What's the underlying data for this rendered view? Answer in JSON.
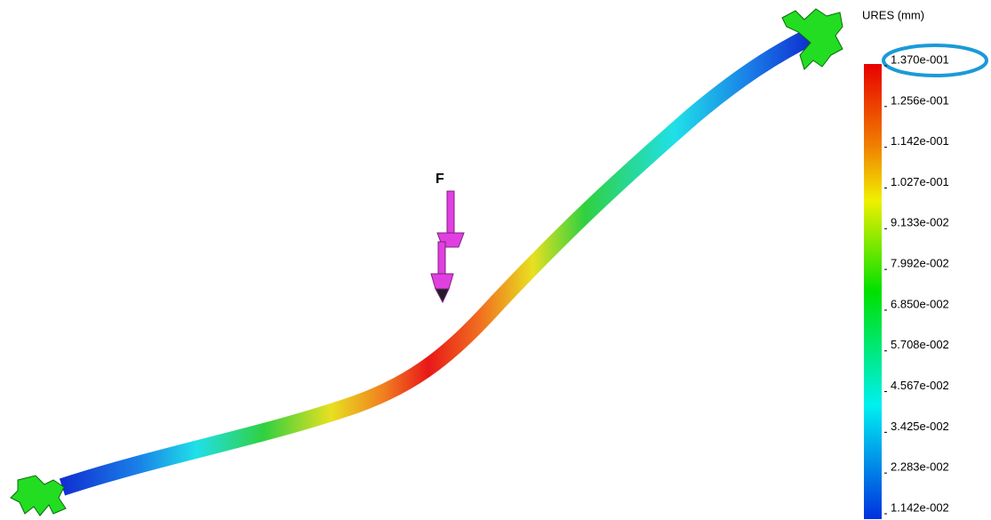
{
  "load_label": "F",
  "legend": {
    "title": "URES (mm)",
    "labels": [
      "1.370e-001",
      "1.256e-001",
      "1.142e-001",
      "1.027e-001",
      "9.133e-002",
      "7.992e-002",
      "6.850e-002",
      "5.708e-002",
      "4.567e-002",
      "3.425e-002",
      "2.283e-002",
      "1.142e-002"
    ]
  }
}
